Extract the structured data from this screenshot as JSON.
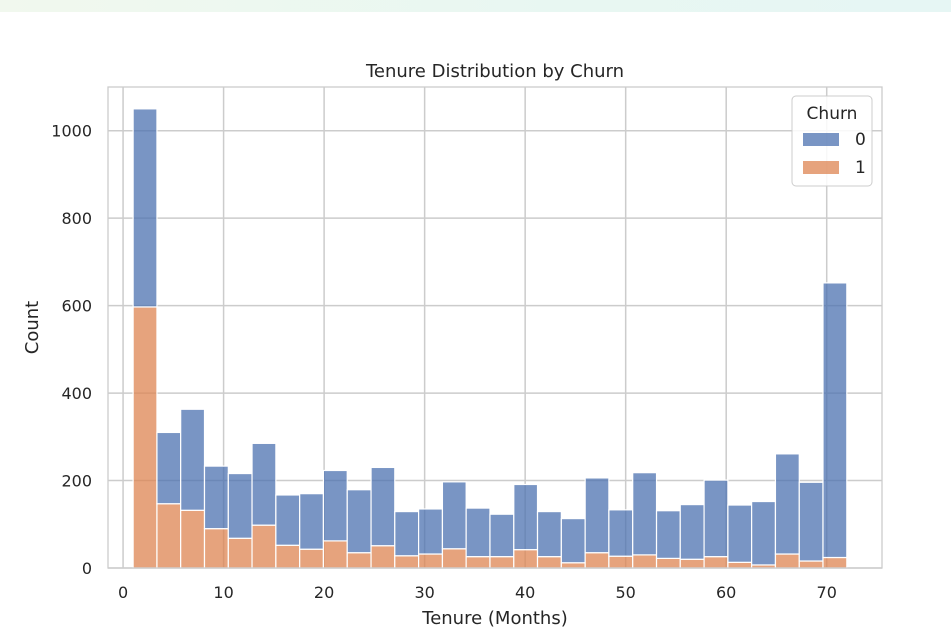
{
  "chart_data": {
    "type": "bar",
    "subtype": "stacked-histogram",
    "title": "Tenure Distribution by Churn",
    "xlabel": "Tenure (Months)",
    "ylabel": "Count",
    "xlim": [
      -1.5,
      75.5
    ],
    "ylim": [
      0,
      1100
    ],
    "xticks": [
      0,
      10,
      20,
      30,
      40,
      50,
      60,
      70
    ],
    "yticks": [
      0,
      200,
      400,
      600,
      800,
      1000
    ],
    "grid": true,
    "legend": {
      "title": "Churn",
      "placement": "top-right"
    },
    "bin_edges": [
      1,
      3.37,
      5.73,
      8.1,
      10.47,
      12.83,
      15.2,
      17.57,
      19.93,
      22.3,
      24.67,
      27.03,
      29.4,
      31.77,
      34.13,
      36.5,
      38.87,
      41.23,
      43.6,
      45.97,
      48.33,
      50.7,
      53.07,
      55.43,
      57.8,
      60.17,
      62.53,
      64.9,
      67.27,
      69.63,
      72
    ],
    "series": [
      {
        "name": "0",
        "color": "#4c72b0",
        "values": [
          453,
          163,
          231,
          143,
          148,
          187,
          115,
          127,
          161,
          144,
          179,
          101,
          103,
          153,
          111,
          97,
          149,
          103,
          101,
          171,
          106,
          188,
          109,
          125,
          175,
          131,
          145,
          229,
          180,
          628
        ]
      },
      {
        "name": "1",
        "color": "#dd8452",
        "values": [
          597,
          147,
          132,
          90,
          68,
          98,
          52,
          43,
          62,
          35,
          51,
          28,
          32,
          44,
          26,
          26,
          42,
          26,
          12,
          35,
          27,
          30,
          22,
          20,
          26,
          13,
          7,
          32,
          16,
          24
        ]
      }
    ]
  }
}
